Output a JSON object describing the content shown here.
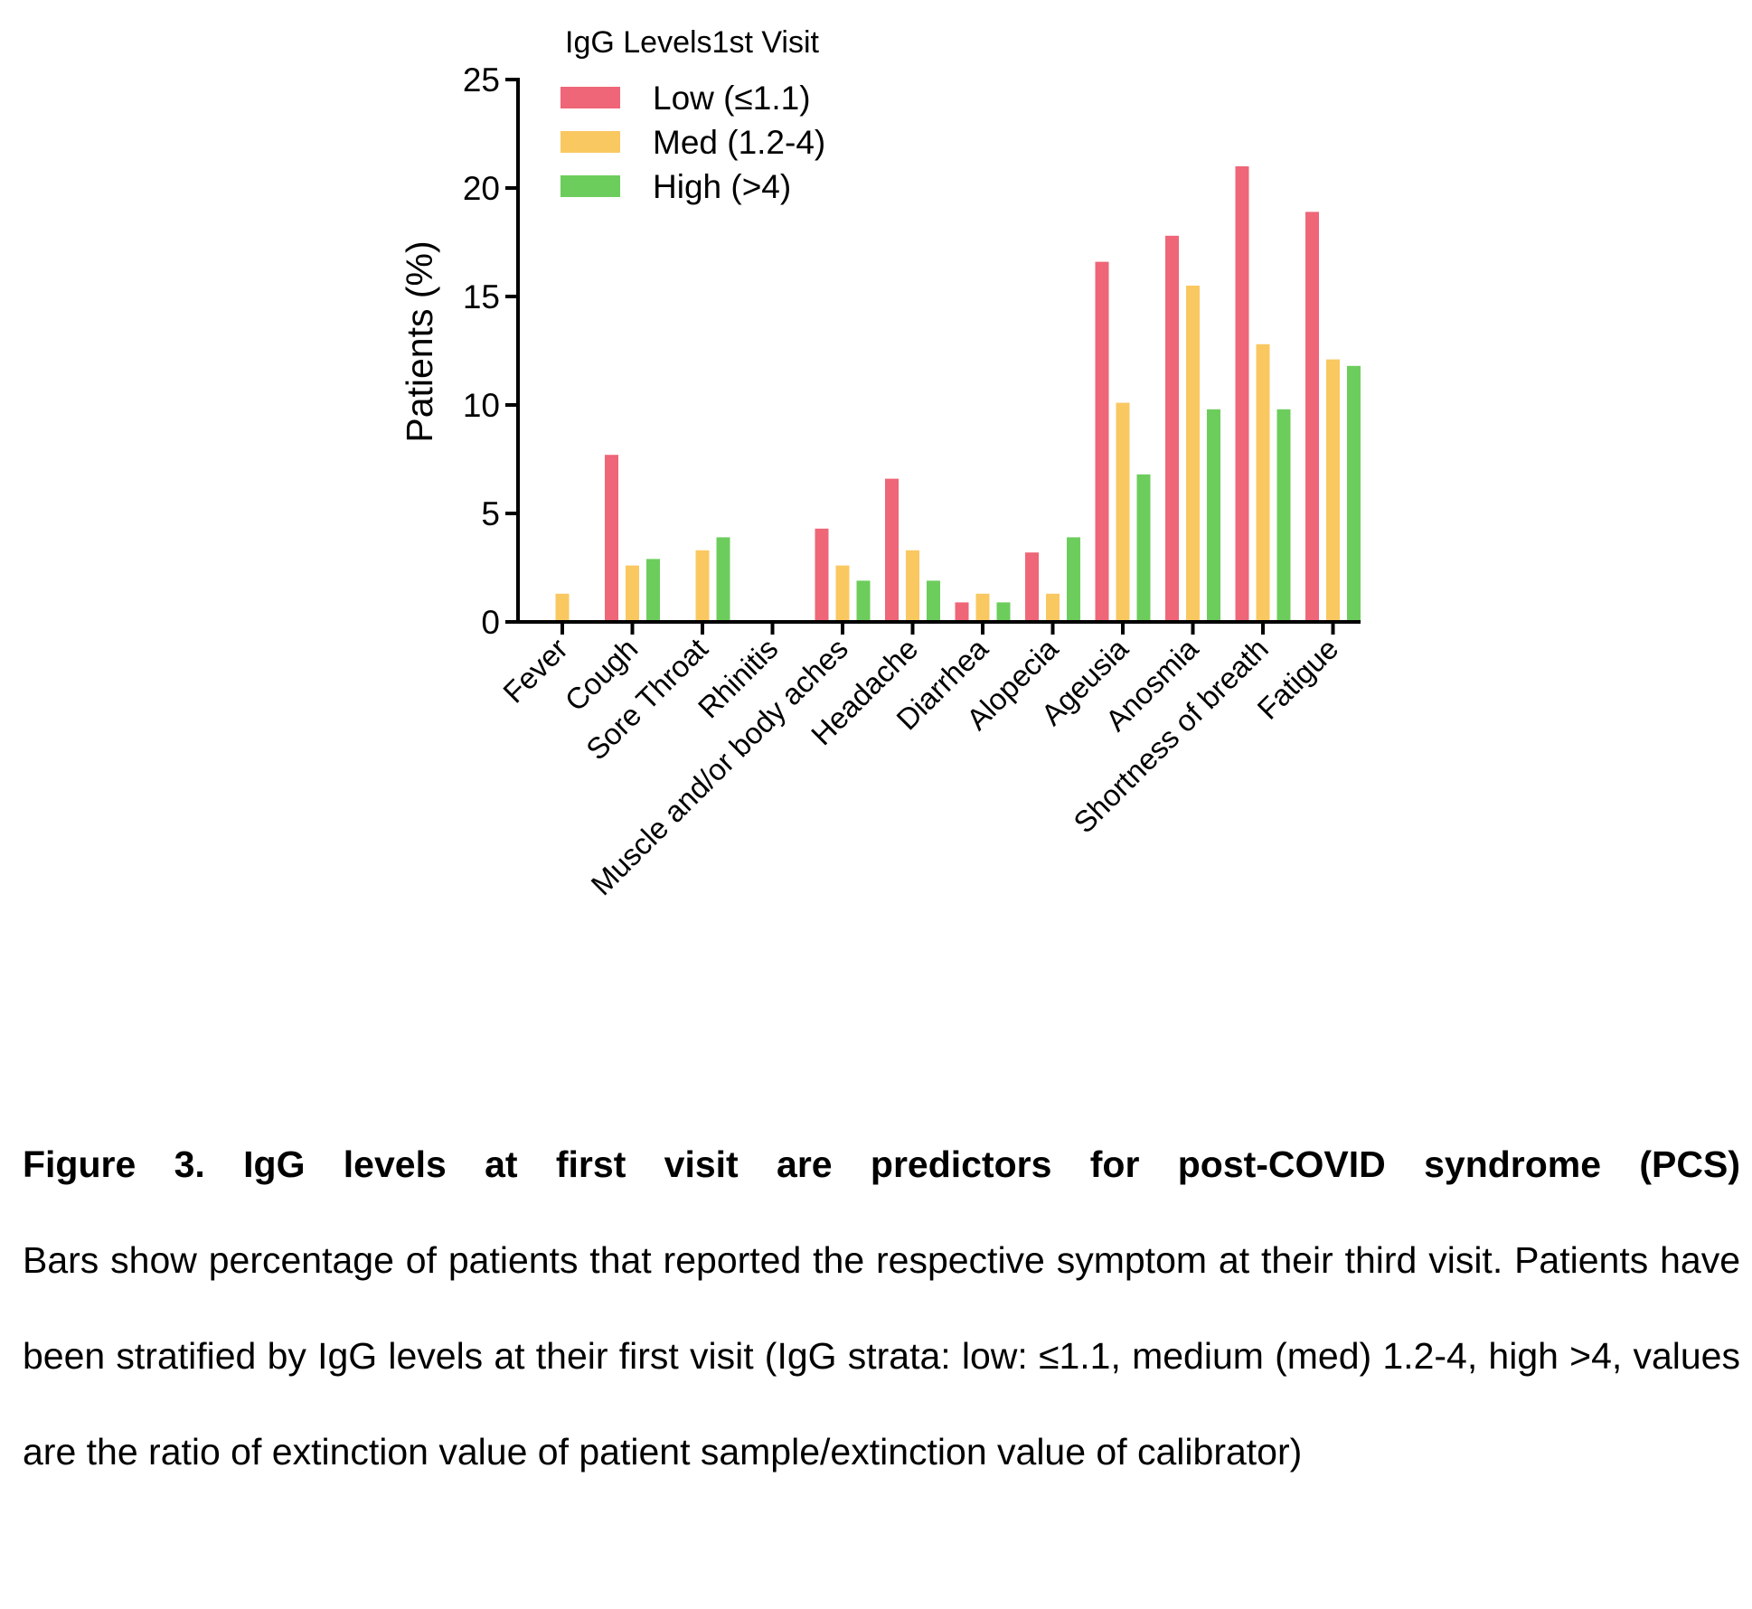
{
  "chart_data": {
    "type": "bar",
    "ylabel": "Patients (%)",
    "ylim": [
      0,
      25
    ],
    "yticks": [
      0,
      5,
      10,
      15,
      20,
      25
    ],
    "legend_title": "IgG Levels1st Visit",
    "legend_position": "top-left",
    "categories": [
      "Fever",
      "Cough",
      "Sore Throat",
      "Rhinitis",
      "Muscle and/or body aches",
      "Headache",
      "Diarrhea",
      "Alopecia",
      "Ageusia",
      "Anosmia",
      "Shortness of breath",
      "Fatigue"
    ],
    "series": [
      {
        "name": "Low (≤1.1)",
        "color": "#ee6677",
        "values": [
          0,
          7.7,
          0,
          0,
          4.3,
          6.6,
          0.9,
          3.2,
          16.6,
          17.8,
          21.0,
          18.9
        ]
      },
      {
        "name": "Med (1.2-4)",
        "color": "#f9c860",
        "values": [
          1.3,
          2.6,
          3.3,
          0,
          2.6,
          3.3,
          1.3,
          1.3,
          10.1,
          15.5,
          12.8,
          12.1
        ]
      },
      {
        "name": "High (>4)",
        "color": "#6ccd5c",
        "values": [
          0,
          2.9,
          3.9,
          0,
          1.9,
          1.9,
          0.9,
          3.9,
          6.8,
          9.8,
          9.8,
          11.8
        ]
      }
    ]
  },
  "caption": {
    "title": "Figure 3. IgG levels at first visit are predictors for post-COVID syndrome (PCS)",
    "body": "Bars show percentage of patients that reported the respective symptom at their third visit. Patients have been stratified by IgG levels at their first visit (IgG strata: low: ≤1.1, medium (med) 1.2-4, high >4, values are the ratio of extinction value of patient sample/extinction value of calibrator)"
  }
}
